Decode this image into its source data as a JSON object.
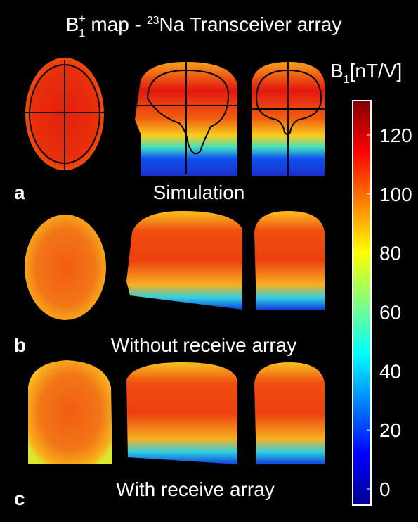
{
  "title": {
    "b": "B",
    "sub": "1",
    "sup": "+",
    "mid": " map - ",
    "iso": "23",
    "rest": "Na Transceiver array"
  },
  "panels": [
    {
      "letter": "a",
      "caption": "Simulation"
    },
    {
      "letter": "b",
      "caption": "Without receive array"
    },
    {
      "letter": "c",
      "caption": "With receive array"
    }
  ],
  "colorbar": {
    "label": {
      "b": "B",
      "sub": "1",
      "unit": "[nT/V]"
    },
    "lim": [
      0,
      130
    ],
    "ticks": [
      0,
      20,
      40,
      60,
      80,
      100,
      120
    ]
  }
}
